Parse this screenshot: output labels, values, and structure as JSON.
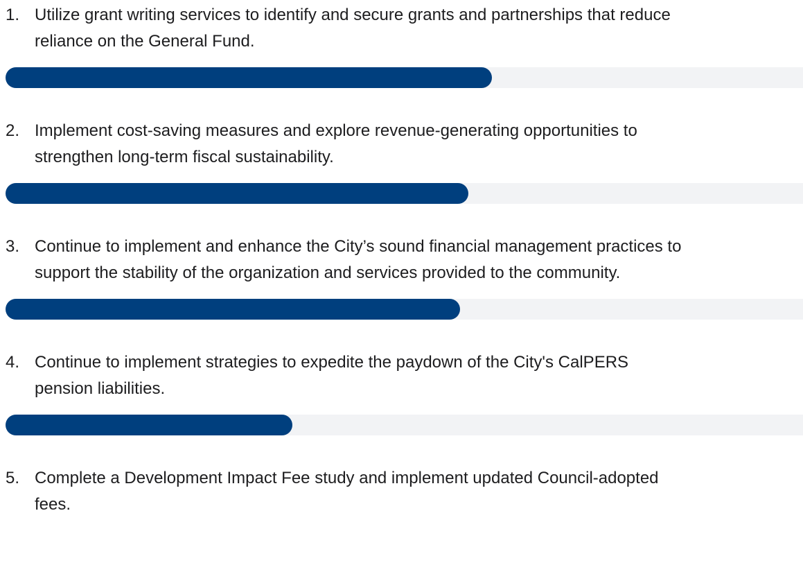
{
  "fill_color": "#003f7e",
  "track_color": "#f2f3f5",
  "items": [
    {
      "number": "1.",
      "lines": [
        "Utilize grant writing services to identify and secure grants and partnerships that reduce",
        "reliance on the General Fund."
      ],
      "progress": 61
    },
    {
      "number": "2.",
      "lines": [
        "Implement cost-saving measures and explore revenue-generating opportunities to",
        "strengthen long-term fiscal sustainability."
      ],
      "progress": 58
    },
    {
      "number": "3.",
      "lines": [
        "Continue to implement and enhance the City’s sound financial management practices to",
        "support the stability of the organization and services provided to the community."
      ],
      "progress": 57
    },
    {
      "number": "4.",
      "lines": [
        "Continue to implement strategies to expedite the paydown of the City's CalPERS",
        "pension liabilities."
      ],
      "progress": 36
    },
    {
      "number": "5.",
      "lines": [
        "Complete a Development Impact Fee study and implement updated Council-adopted",
        "fees."
      ]
    }
  ]
}
